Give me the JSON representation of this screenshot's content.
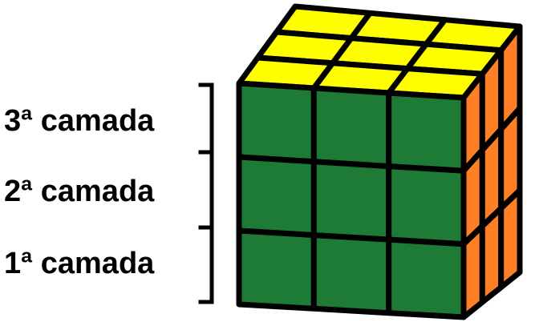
{
  "layers": [
    {
      "label": "3ª camada"
    },
    {
      "label": "2ª camada"
    },
    {
      "label": "1ª camada"
    }
  ],
  "colors": {
    "top_face": "#ffff00",
    "front_face": "#1e7b35",
    "side_face": "#ff7f27",
    "edges": "#000000",
    "bracket": "#000000"
  },
  "cube": {
    "grid": "3x3x3",
    "visible_faces": [
      "top-face",
      "front-face",
      "right-face"
    ]
  }
}
